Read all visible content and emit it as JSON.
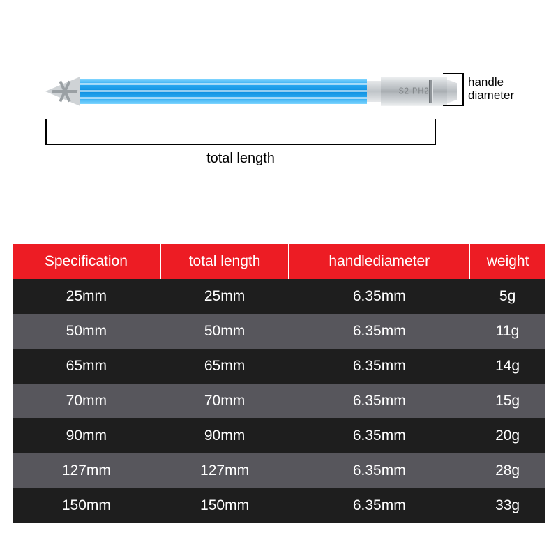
{
  "diagram": {
    "total_length_label": "total length",
    "handle_diameter_label": "handle\ndiameter",
    "hex_stamp": "S2 PH2",
    "shaft_color_top": "#7fd5ff",
    "shaft_color_mid": "#0d8fe0",
    "metal_color": "#cfd3d6"
  },
  "table": {
    "header_bg": "#ed1c24",
    "row_odd_bg": "#1e1e1e",
    "row_even_bg": "#57565c",
    "text_color": "#ffffff",
    "columns": [
      "Specification",
      "total length",
      "handlediameter",
      "weight"
    ],
    "rows": [
      [
        "25mm",
        "25mm",
        "6.35mm",
        "5g"
      ],
      [
        "50mm",
        "50mm",
        "6.35mm",
        "11g"
      ],
      [
        "65mm",
        "65mm",
        "6.35mm",
        "14g"
      ],
      [
        "70mm",
        "70mm",
        "6.35mm",
        "15g"
      ],
      [
        "90mm",
        "90mm",
        "6.35mm",
        "20g"
      ],
      [
        "127mm",
        "127mm",
        "6.35mm",
        "28g"
      ],
      [
        "150mm",
        "150mm",
        "6.35mm",
        "33g"
      ]
    ]
  }
}
